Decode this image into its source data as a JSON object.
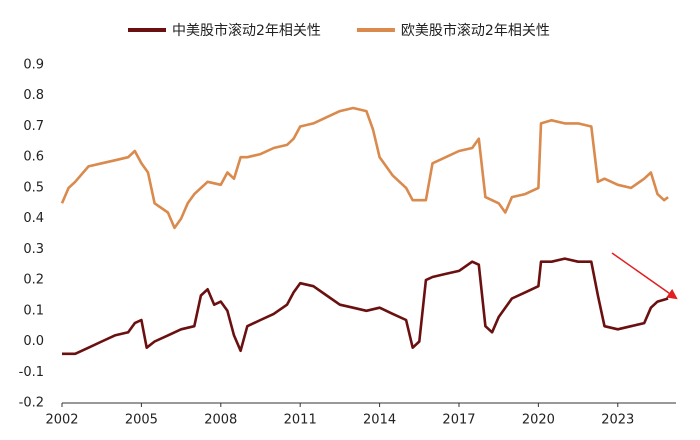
{
  "chart_data": {
    "type": "line",
    "xlim": [
      2002,
      2025.2
    ],
    "xticks": [
      2002,
      2005,
      2008,
      2011,
      2014,
      2017,
      2020,
      2023
    ],
    "ylim": [
      -0.2,
      0.9
    ],
    "yticks": [
      0.9,
      0.8,
      0.7,
      0.6,
      0.5,
      0.4,
      0.3,
      0.2,
      0.1,
      {
        "value": 0,
        "label": "0.0"
      },
      -0.1,
      -0.2
    ],
    "series": [
      {
        "name": "中美股市滚动2年相关性",
        "color": "#6b1010",
        "x": [
          2002,
          2002.5,
          2003,
          2003.5,
          2004,
          2004.5,
          2004.75,
          2005,
          2005.2,
          2005.5,
          2006,
          2006.5,
          2007,
          2007.25,
          2007.5,
          2007.75,
          2008,
          2008.25,
          2008.5,
          2008.75,
          2009,
          2009.5,
          2010,
          2010.5,
          2010.75,
          2011,
          2011.5,
          2012,
          2012.5,
          2013,
          2013.5,
          2014,
          2014.5,
          2015,
          2015.25,
          2015.5,
          2015.75,
          2016,
          2016.5,
          2017,
          2017.5,
          2017.75,
          2018,
          2018.25,
          2018.5,
          2019,
          2019.5,
          2020,
          2020.1,
          2020.5,
          2021,
          2021.5,
          2022,
          2022.25,
          2022.5,
          2023,
          2023.5,
          2024,
          2024.25,
          2024.5,
          2024.9
        ],
        "values": [
          -0.04,
          -0.04,
          -0.02,
          0.0,
          0.02,
          0.03,
          0.06,
          0.07,
          -0.02,
          0.0,
          0.02,
          0.04,
          0.05,
          0.15,
          0.17,
          0.12,
          0.13,
          0.1,
          0.02,
          -0.03,
          0.05,
          0.07,
          0.09,
          0.12,
          0.16,
          0.19,
          0.18,
          0.15,
          0.12,
          0.11,
          0.1,
          0.11,
          0.09,
          0.07,
          -0.02,
          0.0,
          0.2,
          0.21,
          0.22,
          0.23,
          0.26,
          0.25,
          0.05,
          0.03,
          0.08,
          0.14,
          0.16,
          0.18,
          0.26,
          0.26,
          0.27,
          0.26,
          0.26,
          0.15,
          0.05,
          0.04,
          0.05,
          0.06,
          0.11,
          0.13,
          0.14
        ]
      },
      {
        "name": "欧美股市滚动2年相关性",
        "color": "#d98a4c",
        "x": [
          2002,
          2002.25,
          2002.5,
          2003,
          2003.5,
          2004,
          2004.5,
          2004.75,
          2005,
          2005.25,
          2005.5,
          2006,
          2006.25,
          2006.5,
          2006.75,
          2007,
          2007.5,
          2008,
          2008.25,
          2008.5,
          2008.75,
          2009,
          2009.5,
          2010,
          2010.5,
          2010.75,
          2011,
          2011.5,
          2012,
          2012.5,
          2013,
          2013.5,
          2013.75,
          2014,
          2014.5,
          2015,
          2015.25,
          2015.75,
          2016,
          2016.5,
          2017,
          2017.5,
          2017.75,
          2018,
          2018.5,
          2018.75,
          2019,
          2019.5,
          2020,
          2020.1,
          2020.5,
          2021,
          2021.5,
          2022,
          2022.25,
          2022.5,
          2023,
          2023.5,
          2024,
          2024.25,
          2024.5,
          2024.75,
          2024.9
        ],
        "values": [
          0.45,
          0.5,
          0.52,
          0.57,
          0.58,
          0.59,
          0.6,
          0.62,
          0.58,
          0.55,
          0.45,
          0.42,
          0.37,
          0.4,
          0.45,
          0.48,
          0.52,
          0.51,
          0.55,
          0.53,
          0.6,
          0.6,
          0.61,
          0.63,
          0.64,
          0.66,
          0.7,
          0.71,
          0.73,
          0.75,
          0.76,
          0.75,
          0.69,
          0.6,
          0.54,
          0.5,
          0.46,
          0.46,
          0.58,
          0.6,
          0.62,
          0.63,
          0.66,
          0.47,
          0.45,
          0.42,
          0.47,
          0.48,
          0.5,
          0.71,
          0.72,
          0.71,
          0.71,
          0.7,
          0.52,
          0.53,
          0.51,
          0.5,
          0.53,
          0.55,
          0.48,
          0.46,
          0.47
        ]
      }
    ]
  }
}
